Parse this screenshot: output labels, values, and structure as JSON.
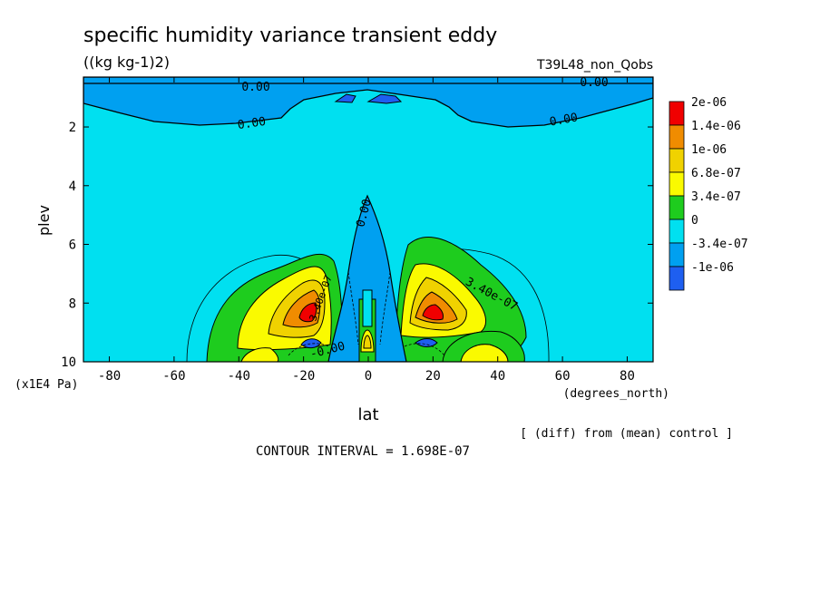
{
  "chart_data": {
    "type": "heatmap",
    "title": "specific humidity variance transient eddy",
    "units": "((kg kg-1)2)",
    "run_label": "T39L48_non_Qobs",
    "xlabel": "lat",
    "x_units": "(degrees_north)",
    "ylabel": "plev",
    "y_units": "(x1E4 Pa)",
    "xlim": [
      -88,
      88
    ],
    "ylim": [
      10,
      0.3
    ],
    "xticks": [
      -80,
      -60,
      -40,
      -20,
      0,
      20,
      40,
      60,
      80
    ],
    "yticks": [
      2,
      4,
      6,
      8,
      10
    ],
    "xtick_labels": [
      "-80",
      "-60",
      "-40",
      "-20",
      "0",
      "20",
      "40",
      "60",
      "80"
    ],
    "ytick_labels": [
      "2",
      "4",
      "6",
      "8",
      "10"
    ],
    "contour_interval_text": "CONTOUR INTERVAL = 1.698E-07",
    "note": "[ (diff) from (mean) control ]",
    "contour_labels": [
      "0.00",
      "0.00",
      "0.00",
      "0.00",
      "0.00",
      "3.40e-07",
      "-0.00",
      "3.40e-07"
    ],
    "colorbar": {
      "labels": [
        "2e-06",
        "1.4e-06",
        "1e-06",
        "6.8e-07",
        "3.4e-07",
        "0",
        "-3.4e-07",
        "-1e-06"
      ],
      "colors": [
        "#f00000",
        "#f08c00",
        "#f0d200",
        "#fafa00",
        "#1ecc1e",
        "#00e0f0",
        "#00a0f0",
        "#1e5ff0"
      ]
    },
    "levels": [
      {
        "value": -1e-06,
        "color": "#1e5ff0"
      },
      {
        "value": -3.4e-07,
        "color": "#00a0f0"
      },
      {
        "value": 0,
        "color": "#00e0f0"
      },
      {
        "value": 3.4e-07,
        "color": "#1ecc1e"
      },
      {
        "value": 6.8e-07,
        "color": "#fafa00"
      },
      {
        "value": 1e-06,
        "color": "#f0d200"
      },
      {
        "value": 1.4e-06,
        "color": "#f08c00"
      },
      {
        "value": 2e-06,
        "color": "#f00000"
      }
    ]
  }
}
